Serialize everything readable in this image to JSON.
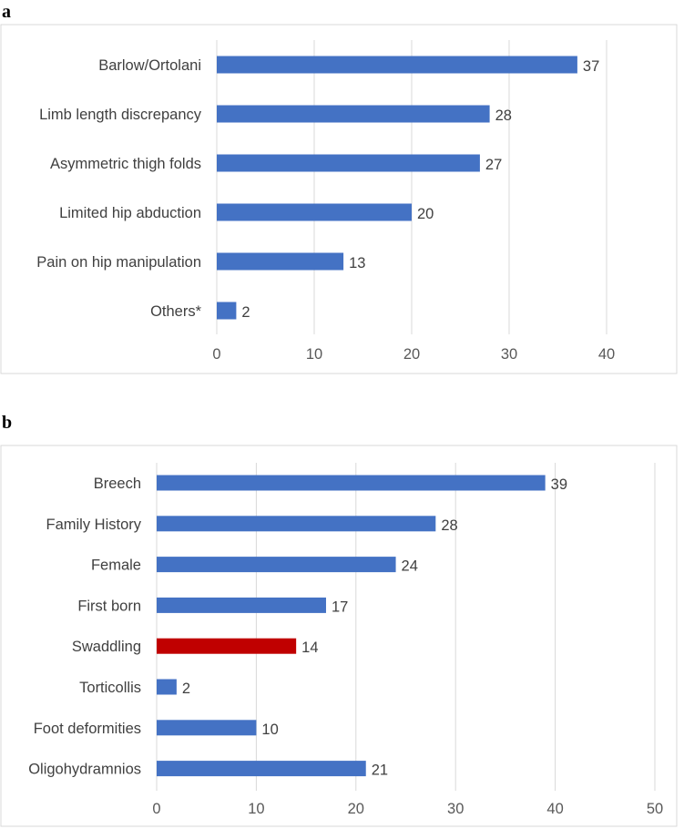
{
  "panels": {
    "a": "a",
    "b": "b"
  },
  "chart_data": [
    {
      "type": "bar",
      "orientation": "horizontal",
      "categories": [
        "Barlow/Ortolani",
        "Limb length discrepancy",
        "Asymmetric thigh folds",
        "Limited hip abduction",
        "Pain on hip manipulation",
        "Others*"
      ],
      "values": [
        37,
        28,
        27,
        20,
        13,
        2
      ],
      "colors": [
        "#4472c4",
        "#4472c4",
        "#4472c4",
        "#4472c4",
        "#4472c4",
        "#4472c4"
      ],
      "xticks": [
        0,
        10,
        20,
        30,
        40
      ],
      "xlim": [
        0,
        40
      ],
      "title": "",
      "xlabel": "",
      "ylabel": "",
      "grid": true
    },
    {
      "type": "bar",
      "orientation": "horizontal",
      "categories": [
        "Breech",
        "Family History",
        "Female",
        "First born",
        "Swaddling",
        "Torticollis",
        "Foot deformities",
        "Oligohydramnios"
      ],
      "values": [
        39,
        28,
        24,
        17,
        14,
        2,
        10,
        21
      ],
      "colors": [
        "#4472c4",
        "#4472c4",
        "#4472c4",
        "#4472c4",
        "#c00000",
        "#4472c4",
        "#4472c4",
        "#4472c4"
      ],
      "xticks": [
        0,
        10,
        20,
        30,
        40,
        50
      ],
      "xlim": [
        0,
        50
      ],
      "title": "",
      "xlabel": "",
      "ylabel": "",
      "grid": true
    }
  ]
}
